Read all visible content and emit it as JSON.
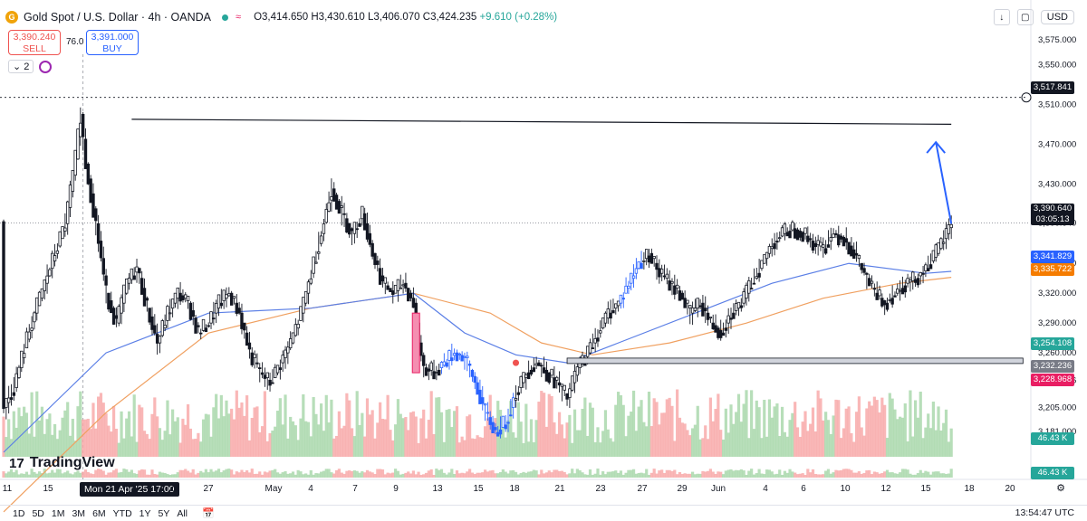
{
  "header": {
    "title": "Gold Spot / U.S. Dollar · 4h · OANDA",
    "ohlc": "O3,414.650 H3,430.610 L3,406.070 C3,424.235",
    "change": "+9.610 (+0.28%)",
    "symbol_icon": "gold-coin-icon"
  },
  "trade": {
    "sell_price": "3,390.240",
    "sell_label": "SELL",
    "spread": "76.0",
    "buy_price": "3,391.000",
    "buy_label": "BUY"
  },
  "layers": {
    "count": "2"
  },
  "toolbar": {
    "currency": "USD"
  },
  "price_tags": {
    "alert": "3,517.841",
    "last_price": "3,390.640",
    "countdown": "03:05:13",
    "ma_blue": "3,341.829",
    "ma_orange": "3,335.722",
    "support_green": "3,254.108",
    "gray_level": "3,232.236",
    "pink_level": "3,228.968",
    "volume_top": "46.43 K",
    "volume_bottom": "46.43 K"
  },
  "brand": {
    "name": "TradingView",
    "logo": "17"
  },
  "crosshair": {
    "date_label": "Mon 21 Apr '25   17:00"
  },
  "bottom": {
    "ranges": [
      "1D",
      "5D",
      "1M",
      "3M",
      "6M",
      "YTD",
      "1Y",
      "5Y",
      "All"
    ],
    "time": "13:54:47 UTC"
  },
  "colors": {
    "up": "#26a69a",
    "down": "#ef5350",
    "blue_candle": "#2962ff",
    "ma_blue": "#5b7fe6",
    "ma_orange": "#f0a060",
    "support": "#4caf50",
    "pink": "#e91e63"
  },
  "chart_data": {
    "type": "candlestick",
    "symbol": "XAUUSD",
    "interval": "4h",
    "y_ticks": [
      "3,575.000",
      "3,550.000",
      "3,510.000",
      "3,470.000",
      "3,430.000",
      "3,390.640",
      "3,350.000",
      "3,320.000",
      "3,290.000",
      "3,260.000",
      "3,232.236",
      "3,205.000",
      "3,181.000"
    ],
    "x_ticks": [
      "11",
      "15",
      "24",
      "27",
      "May",
      "4",
      "7",
      "9",
      "13",
      "15",
      "18",
      "21",
      "23",
      "27",
      "29",
      "Jun",
      "4",
      "6",
      "10",
      "12",
      "15",
      "18",
      "20"
    ],
    "ylim": [
      3160,
      3595
    ],
    "price_path": [
      [
        0,
        3205
      ],
      [
        2,
        3225
      ],
      [
        4,
        3265
      ],
      [
        6,
        3300
      ],
      [
        8,
        3330
      ],
      [
        10,
        3360
      ],
      [
        12,
        3390
      ],
      [
        14,
        3455
      ],
      [
        15,
        3500
      ],
      [
        16,
        3450
      ],
      [
        18,
        3390
      ],
      [
        20,
        3320
      ],
      [
        22,
        3290
      ],
      [
        24,
        3330
      ],
      [
        26,
        3345
      ],
      [
        28,
        3305
      ],
      [
        30,
        3270
      ],
      [
        32,
        3300
      ],
      [
        34,
        3320
      ],
      [
        36,
        3310
      ],
      [
        38,
        3280
      ],
      [
        40,
        3290
      ],
      [
        42,
        3310
      ],
      [
        44,
        3320
      ],
      [
        46,
        3300
      ],
      [
        48,
        3260
      ],
      [
        50,
        3240
      ],
      [
        52,
        3230
      ],
      [
        54,
        3250
      ],
      [
        56,
        3270
      ],
      [
        58,
        3300
      ],
      [
        60,
        3340
      ],
      [
        62,
        3380
      ],
      [
        64,
        3425
      ],
      [
        66,
        3400
      ],
      [
        68,
        3380
      ],
      [
        70,
        3400
      ],
      [
        72,
        3360
      ],
      [
        74,
        3330
      ],
      [
        76,
        3320
      ],
      [
        78,
        3330
      ],
      [
        80,
        3310
      ],
      [
        81,
        3270
      ],
      [
        82,
        3245
      ],
      [
        84,
        3240
      ],
      [
        86,
        3250
      ],
      [
        88,
        3260
      ],
      [
        90,
        3255
      ],
      [
        92,
        3230
      ],
      [
        94,
        3200
      ],
      [
        96,
        3180
      ],
      [
        98,
        3190
      ],
      [
        100,
        3220
      ],
      [
        102,
        3240
      ],
      [
        104,
        3250
      ],
      [
        106,
        3240
      ],
      [
        108,
        3230
      ],
      [
        110,
        3215
      ],
      [
        112,
        3245
      ],
      [
        114,
        3260
      ],
      [
        116,
        3280
      ],
      [
        118,
        3300
      ],
      [
        120,
        3310
      ],
      [
        122,
        3330
      ],
      [
        124,
        3350
      ],
      [
        126,
        3360
      ],
      [
        128,
        3340
      ],
      [
        130,
        3330
      ],
      [
        132,
        3320
      ],
      [
        134,
        3300
      ],
      [
        136,
        3310
      ],
      [
        138,
        3290
      ],
      [
        140,
        3280
      ],
      [
        142,
        3300
      ],
      [
        144,
        3310
      ],
      [
        146,
        3330
      ],
      [
        148,
        3350
      ],
      [
        150,
        3370
      ],
      [
        152,
        3380
      ],
      [
        154,
        3385
      ],
      [
        156,
        3380
      ],
      [
        158,
        3370
      ],
      [
        160,
        3365
      ],
      [
        162,
        3380
      ],
      [
        164,
        3375
      ],
      [
        166,
        3360
      ],
      [
        168,
        3340
      ],
      [
        170,
        3320
      ],
      [
        172,
        3310
      ],
      [
        174,
        3320
      ],
      [
        176,
        3330
      ],
      [
        178,
        3335
      ],
      [
        180,
        3345
      ],
      [
        182,
        3360
      ],
      [
        184,
        3380
      ],
      [
        185,
        3392
      ]
    ],
    "ma_blue": [
      [
        0,
        3160
      ],
      [
        20,
        3260
      ],
      [
        40,
        3300
      ],
      [
        60,
        3305
      ],
      [
        80,
        3320
      ],
      [
        90,
        3280
      ],
      [
        100,
        3258
      ],
      [
        110,
        3250
      ],
      [
        120,
        3270
      ],
      [
        135,
        3300
      ],
      [
        150,
        3330
      ],
      [
        165,
        3350
      ],
      [
        180,
        3340
      ],
      [
        185,
        3342
      ]
    ],
    "ma_orange": [
      [
        0,
        3100
      ],
      [
        20,
        3200
      ],
      [
        40,
        3280
      ],
      [
        60,
        3305
      ],
      [
        80,
        3320
      ],
      [
        95,
        3300
      ],
      [
        105,
        3270
      ],
      [
        115,
        3258
      ],
      [
        130,
        3270
      ],
      [
        145,
        3290
      ],
      [
        160,
        3315
      ],
      [
        175,
        3330
      ],
      [
        185,
        3336
      ]
    ],
    "horizontal_levels": [
      {
        "label": "resistance",
        "from": [
          25,
          3495
        ],
        "to": [
          185,
          3490
        ]
      },
      {
        "label": "support",
        "from": [
          110,
          3252
        ],
        "to": [
          199,
          3252
        ]
      }
    ],
    "projection_arrow": {
      "from": [
        185,
        3390
      ],
      "to": [
        182,
        3472
      ]
    },
    "grid": false,
    "legend": "none"
  }
}
